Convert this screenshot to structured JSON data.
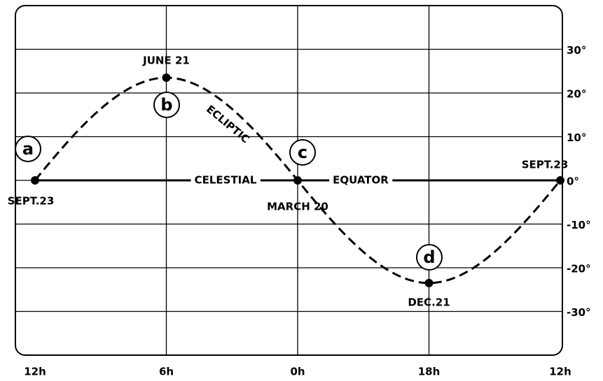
{
  "chart_data": {
    "type": "line",
    "categories": [
      "12h",
      "6h",
      "0h",
      "18h",
      "12h"
    ],
    "series": [
      {
        "name": "ECLIPTIC",
        "color": "#000000",
        "values": [
          0,
          23.5,
          0,
          -23.5,
          0
        ]
      }
    ],
    "point_labels": [
      "SEPT.23",
      "JUNE 21",
      "MARCH 20",
      "DEC.21",
      "SEPT.23"
    ],
    "point_markers": [
      "a",
      "b",
      "c",
      "d"
    ],
    "reference_line": {
      "value": 0,
      "labels": [
        "CELESTIAL",
        "EQUATOR"
      ]
    },
    "ylim": [
      -40,
      40
    ],
    "yticks": [
      {
        "value": 30,
        "label": "30°"
      },
      {
        "value": 20,
        "label": "20°"
      },
      {
        "value": 10,
        "label": "10°"
      },
      {
        "value": 0,
        "label": "0°"
      },
      {
        "value": -10,
        "label": "-10°"
      },
      {
        "value": -20,
        "label": "-20°"
      },
      {
        "value": -30,
        "label": "-30°"
      }
    ],
    "grid": true
  }
}
